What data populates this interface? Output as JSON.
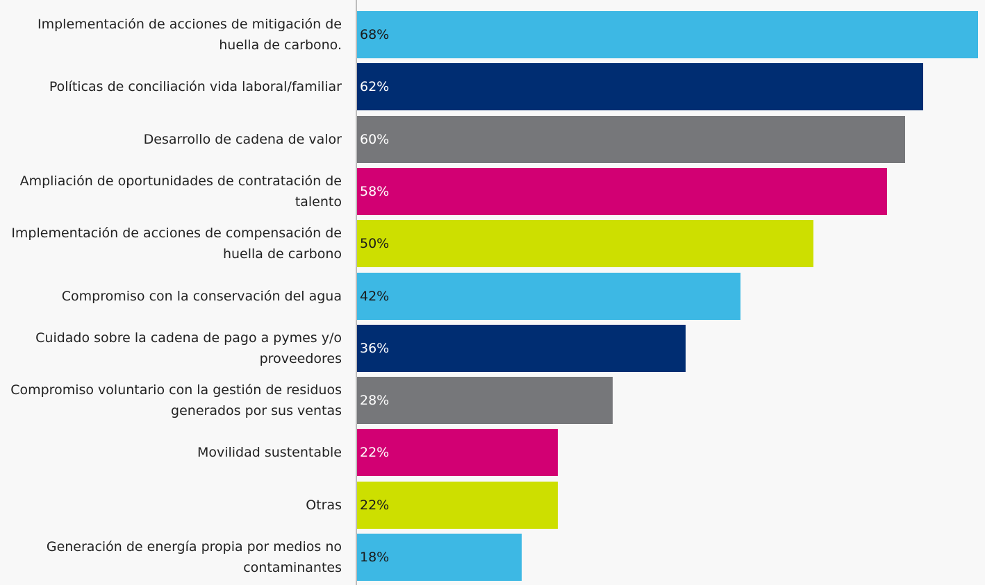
{
  "chart_data": {
    "type": "hbar",
    "categories": [
      "Implementación de acciones de mitigación de huella de carbono.",
      "Políticas de conciliación vida laboral/familiar",
      "Desarrollo de cadena de valor",
      "Ampliación de oportunidades de contratación de talento",
      "Implementación de acciones de compensación de huella de carbono",
      "Compromiso con la conservación del agua",
      "Cuidado sobre la cadena de pago a pymes y/o proveedores",
      "Compromiso voluntario con la gestión de residuos generados por sus ventas",
      "Movilidad sustentable",
      "Otras",
      "Generación de energía propia por medios no contaminantes"
    ],
    "values": [
      68,
      62,
      60,
      58,
      50,
      42,
      36,
      28,
      22,
      22,
      18
    ],
    "value_labels": [
      "68%",
      "62%",
      "60%",
      "58%",
      "50%",
      "42%",
      "36%",
      "28%",
      "22%",
      "22%",
      "18%"
    ],
    "colors": [
      "#3db8e4",
      "#002d72",
      "#76777a",
      "#d20073",
      "#cddf00",
      "#3db8e4",
      "#002d72",
      "#76777a",
      "#d20073",
      "#cddf00",
      "#3db8e4"
    ]
  }
}
